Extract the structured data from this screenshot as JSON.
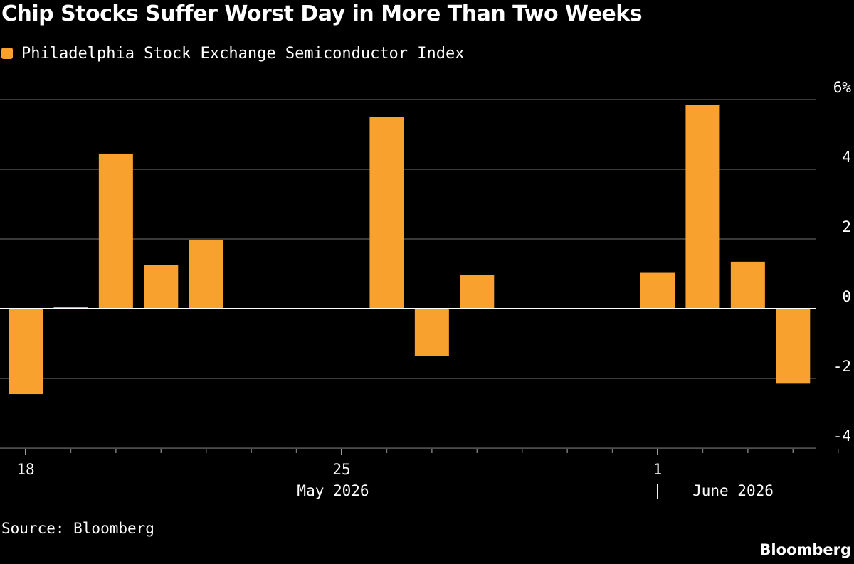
{
  "title": "Chip Stocks Suffer Worst Day in More Than Two Weeks",
  "source": "Source: Bloomberg",
  "brand": "Bloomberg",
  "colors": {
    "background": "#000000",
    "bar": "#f9a12e",
    "grid": "#4d4d4d",
    "zero_line": "#ffffff",
    "text": "#ffffff"
  },
  "chart_data": {
    "type": "bar",
    "legend": [
      "Philadelphia Stock Exchange Semiconductor Index"
    ],
    "legend_position": "top-left",
    "series": [
      {
        "name": "Philadelphia Stock Exchange Semiconductor Index",
        "points": [
          {
            "date": "2026-05-18",
            "value": -2.45
          },
          {
            "date": "2026-05-19",
            "value": 0.02
          },
          {
            "date": "2026-05-20",
            "value": 4.45
          },
          {
            "date": "2026-05-21",
            "value": 1.25
          },
          {
            "date": "2026-05-22",
            "value": 1.98
          },
          {
            "date": "2026-05-26",
            "value": 5.5
          },
          {
            "date": "2026-05-27",
            "value": -1.35
          },
          {
            "date": "2026-05-28",
            "value": 0.98
          },
          {
            "date": "2026-06-01",
            "value": 1.03
          },
          {
            "date": "2026-06-02",
            "value": 5.85
          },
          {
            "date": "2026-06-03",
            "value": 1.35
          },
          {
            "date": "2026-06-04",
            "value": -2.15
          }
        ]
      }
    ],
    "x_range": [
      "2026-05-18",
      "2026-06-05"
    ],
    "ylim": [
      -4,
      6
    ],
    "y_ticks": [
      6,
      4,
      2,
      0,
      -2,
      -4
    ],
    "y_tick_labels": [
      "6%",
      "4",
      "2",
      "0",
      "-2",
      "-4"
    ],
    "y_axis_side": "right",
    "grid": true,
    "x_tick_labels": [
      {
        "date": "2026-05-18",
        "label": "18"
      },
      {
        "date": "2026-05-25",
        "label": "25"
      },
      {
        "date": "2026-06-01",
        "label": "1"
      }
    ],
    "month_labels": [
      {
        "label": "May 2026",
        "separator": ""
      },
      {
        "label": "June 2026",
        "separator": "|"
      }
    ]
  }
}
